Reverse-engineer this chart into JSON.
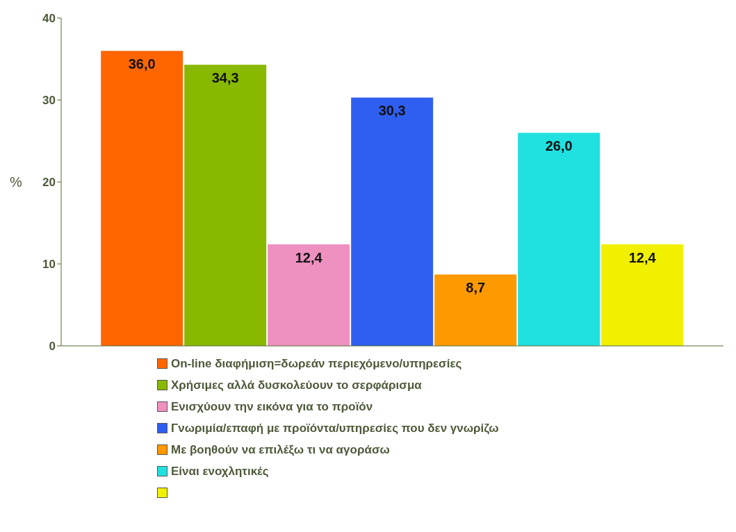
{
  "chart_data": {
    "type": "bar",
    "ylabel": "%",
    "categories": [
      null
    ],
    "ylim": [
      0,
      40
    ],
    "yticks": [
      0,
      10,
      20,
      30,
      40
    ],
    "grid": false,
    "legend": "bottom",
    "tick_labels": "y",
    "series": [
      {
        "name": "On-line διαφήμιση=δωρεάν περιεχόμενο/υπηρεσίες",
        "color": "#ff6600",
        "values": [
          36.0
        ],
        "value_labels": [
          "36,0"
        ]
      },
      {
        "name": "Χρήσιμες αλλά δυσκολεύουν το σερφάρισμα",
        "color": "#88b800",
        "values": [
          34.3
        ],
        "value_labels": [
          "34,3"
        ]
      },
      {
        "name": "Ενισχύουν την εικόνα για το προϊόν",
        "color": "#ee90c0",
        "values": [
          12.4
        ],
        "value_labels": [
          "12,4"
        ]
      },
      {
        "name": "Γνωριμία/επαφή με προϊόντα/υπηρεσίες που δεν γνωρίζω",
        "color": "#2f5ff0",
        "values": [
          30.3
        ],
        "value_labels": [
          "30,3"
        ]
      },
      {
        "name": "Με βοηθούν να επιλέξω τι να αγοράσω",
        "color": "#ff9900",
        "values": [
          8.7
        ],
        "value_labels": [
          "8,7"
        ]
      },
      {
        "name": "Είναι ενοχλητικές",
        "color": "#20e0e0",
        "values": [
          26.0
        ],
        "value_labels": [
          "26,0"
        ]
      },
      {
        "color": "#f0f000",
        "values": [
          12.4
        ],
        "value_labels": [
          "12,4"
        ]
      }
    ]
  }
}
